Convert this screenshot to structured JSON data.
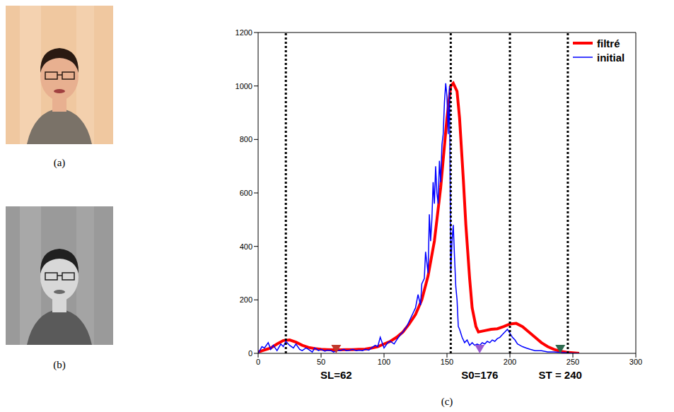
{
  "panels": [
    "(a)",
    "(b)"
  ],
  "chart_data": {
    "type": "line",
    "panel_label": "(c)",
    "xlim": [
      0,
      300
    ],
    "xticks": [
      0,
      50,
      100,
      150,
      200,
      250,
      300
    ],
    "ylim": [
      0,
      1200
    ],
    "yticks": [
      0,
      200,
      400,
      600,
      800,
      1000,
      1200
    ],
    "grid": false,
    "legend": "upper right",
    "series": [
      {
        "name": "filtré",
        "color": "#ff0000",
        "x": [
          0,
          10,
          15,
          20,
          25,
          30,
          35,
          40,
          45,
          50,
          55,
          60,
          65,
          70,
          75,
          80,
          85,
          90,
          95,
          100,
          105,
          110,
          115,
          120,
          125,
          130,
          135,
          140,
          145,
          150,
          153,
          155,
          158,
          160,
          163,
          165,
          168,
          170,
          173,
          175,
          180,
          185,
          190,
          195,
          200,
          205,
          210,
          215,
          220,
          225,
          230,
          235,
          240,
          245,
          250,
          255
        ],
        "values": [
          5,
          20,
          35,
          48,
          50,
          42,
          30,
          22,
          18,
          15,
          14,
          13,
          13,
          14,
          14,
          15,
          16,
          20,
          25,
          35,
          45,
          60,
          80,
          110,
          145,
          200,
          290,
          420,
          620,
          880,
          1000,
          1010,
          980,
          880,
          650,
          480,
          280,
          170,
          100,
          80,
          85,
          90,
          92,
          100,
          110,
          112,
          100,
          80,
          60,
          40,
          25,
          15,
          8,
          4,
          2,
          0
        ]
      },
      {
        "name": "initial",
        "color": "#0000ff",
        "x": [
          0,
          3,
          5,
          8,
          10,
          12,
          15,
          18,
          20,
          22,
          25,
          28,
          30,
          33,
          35,
          38,
          40,
          43,
          45,
          48,
          50,
          53,
          55,
          58,
          60,
          63,
          65,
          68,
          70,
          73,
          75,
          78,
          80,
          83,
          85,
          88,
          90,
          93,
          95,
          97,
          100,
          103,
          105,
          108,
          110,
          113,
          115,
          118,
          120,
          123,
          125,
          127,
          129,
          130,
          132,
          133,
          135,
          136,
          137,
          138,
          139,
          140,
          141,
          142,
          143,
          144,
          145,
          146,
          147,
          148,
          149,
          150,
          151,
          152,
          153,
          154,
          155,
          156,
          157,
          158,
          159,
          160,
          162,
          164,
          166,
          168,
          170,
          172,
          174,
          176,
          178,
          180,
          182,
          184,
          186,
          188,
          190,
          192,
          194,
          196,
          198,
          200,
          202,
          204,
          206,
          208,
          210,
          213,
          216,
          220,
          225,
          230,
          235,
          240,
          245,
          250,
          255
        ],
        "values": [
          0,
          25,
          20,
          40,
          15,
          30,
          10,
          35,
          25,
          45,
          30,
          20,
          35,
          15,
          10,
          20,
          15,
          5,
          20,
          10,
          15,
          8,
          12,
          10,
          5,
          12,
          10,
          15,
          10,
          12,
          15,
          10,
          12,
          10,
          15,
          12,
          20,
          30,
          25,
          60,
          20,
          40,
          45,
          35,
          50,
          70,
          80,
          100,
          120,
          150,
          170,
          220,
          180,
          260,
          280,
          380,
          300,
          520,
          420,
          500,
          640,
          560,
          700,
          600,
          560,
          720,
          640,
          780,
          820,
          940,
          1010,
          960,
          820,
          1000,
          300,
          420,
          480,
          360,
          250,
          200,
          100,
          90,
          60,
          40,
          50,
          30,
          40,
          30,
          35,
          30,
          40,
          35,
          45,
          40,
          50,
          45,
          55,
          60,
          70,
          80,
          90,
          75,
          60,
          50,
          35,
          30,
          25,
          20,
          15,
          10,
          10,
          5,
          5,
          3,
          2,
          0,
          0
        ]
      }
    ],
    "vlines": [
      22,
      153,
      200,
      246
    ],
    "markers": [
      {
        "x": 62,
        "label": "SL=62",
        "color": "#c0392b"
      },
      {
        "x": 176,
        "label": "S0=176",
        "color": "#9b59d0"
      },
      {
        "x": 240,
        "label": "ST = 240",
        "color": "#2e6b4f"
      }
    ]
  }
}
